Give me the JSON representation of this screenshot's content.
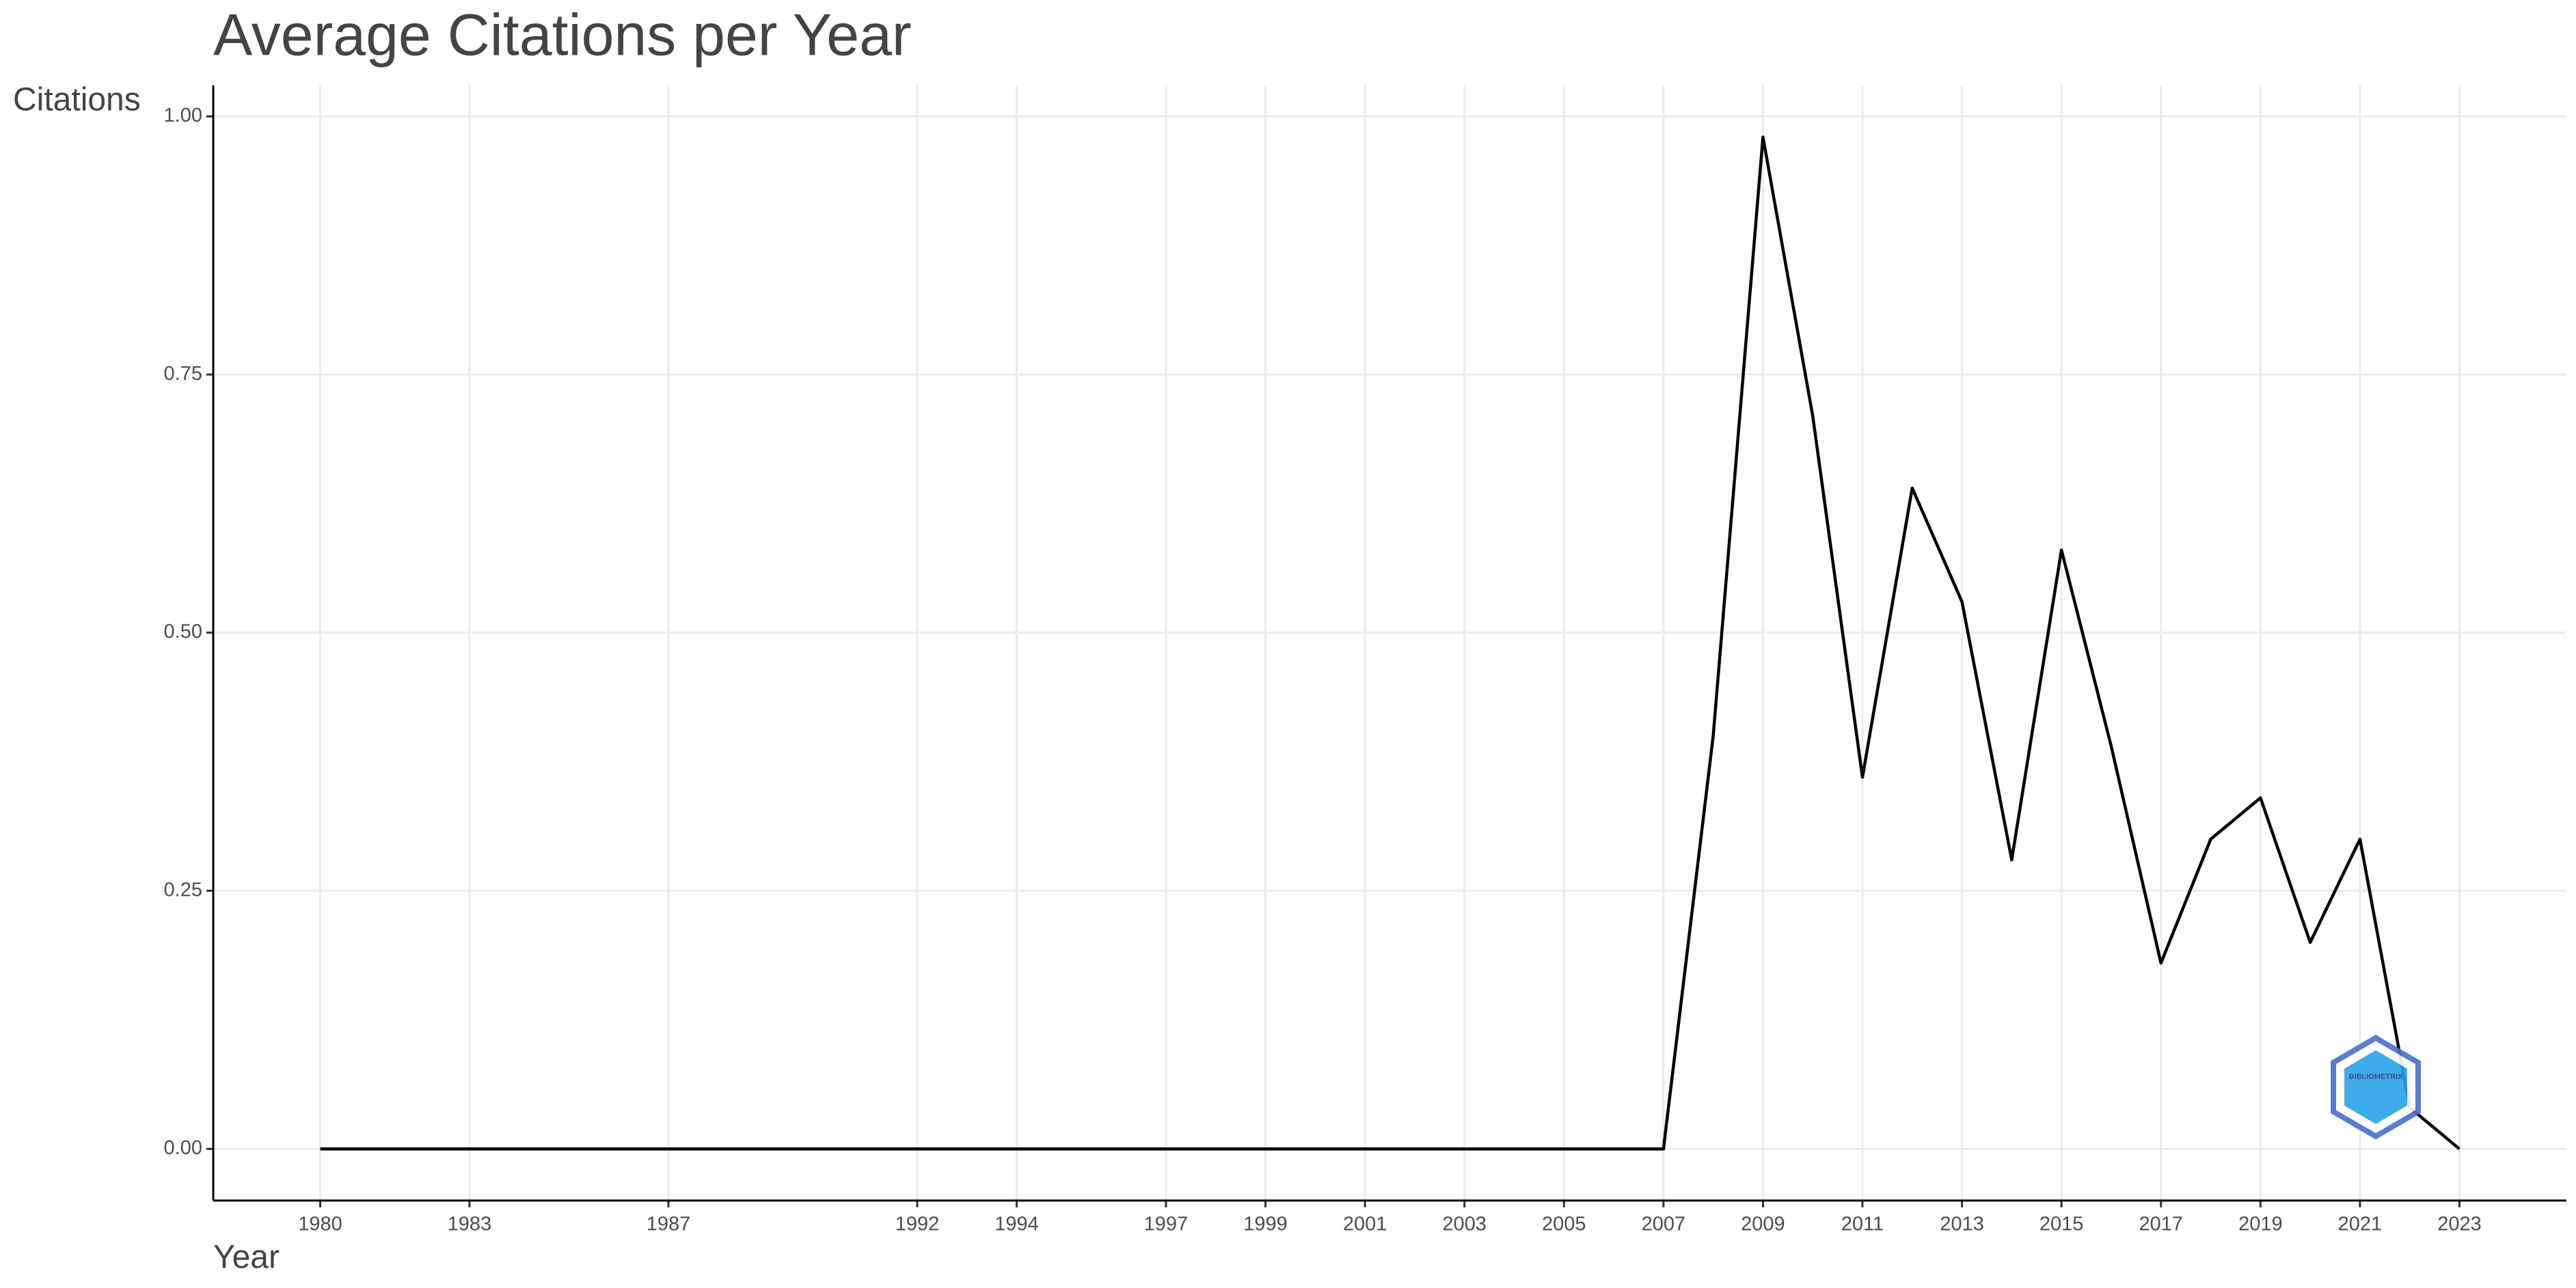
{
  "chart_data": {
    "type": "line",
    "title": "Average Citations per Year",
    "x_label": "Year",
    "y_label": "Citations",
    "x": [
      1980,
      1983,
      1987,
      1992,
      1994,
      1997,
      1999,
      2001,
      2003,
      2005,
      2007,
      2008,
      2009,
      2010,
      2011,
      2012,
      2013,
      2014,
      2015,
      2016,
      2017,
      2018,
      2019,
      2020,
      2021,
      2022,
      2023
    ],
    "series": [
      {
        "name": "Citations",
        "color": "#000000",
        "values": [
          0,
          0,
          0,
          0,
          0,
          0,
          0,
          0,
          0,
          0,
          0,
          0.4,
          0.98,
          0.71,
          0.36,
          0.64,
          0.53,
          0.28,
          0.58,
          0.39,
          0.18,
          0.3,
          0.34,
          0.2,
          0.3,
          0.04,
          0
        ]
      }
    ],
    "xlim": [
      1977.85,
      2025.15
    ],
    "xticks": [
      1980,
      1983,
      1987,
      1992,
      1994,
      1997,
      1999,
      2001,
      2003,
      2005,
      2007,
      2009,
      2011,
      2013,
      2015,
      2017,
      2019,
      2021,
      2023
    ],
    "ylim": [
      -0.05,
      1.03
    ],
    "yticks": [
      {
        "value": 0,
        "label": "0.00"
      },
      {
        "value": 0.25,
        "label": "0.25"
      },
      {
        "value": 0.5,
        "label": "0.50"
      },
      {
        "value": 0.75,
        "label": "0.75"
      },
      {
        "value": 1,
        "label": "1.00"
      }
    ],
    "grid": true,
    "watermark": "BIBLIOMETRIX"
  }
}
